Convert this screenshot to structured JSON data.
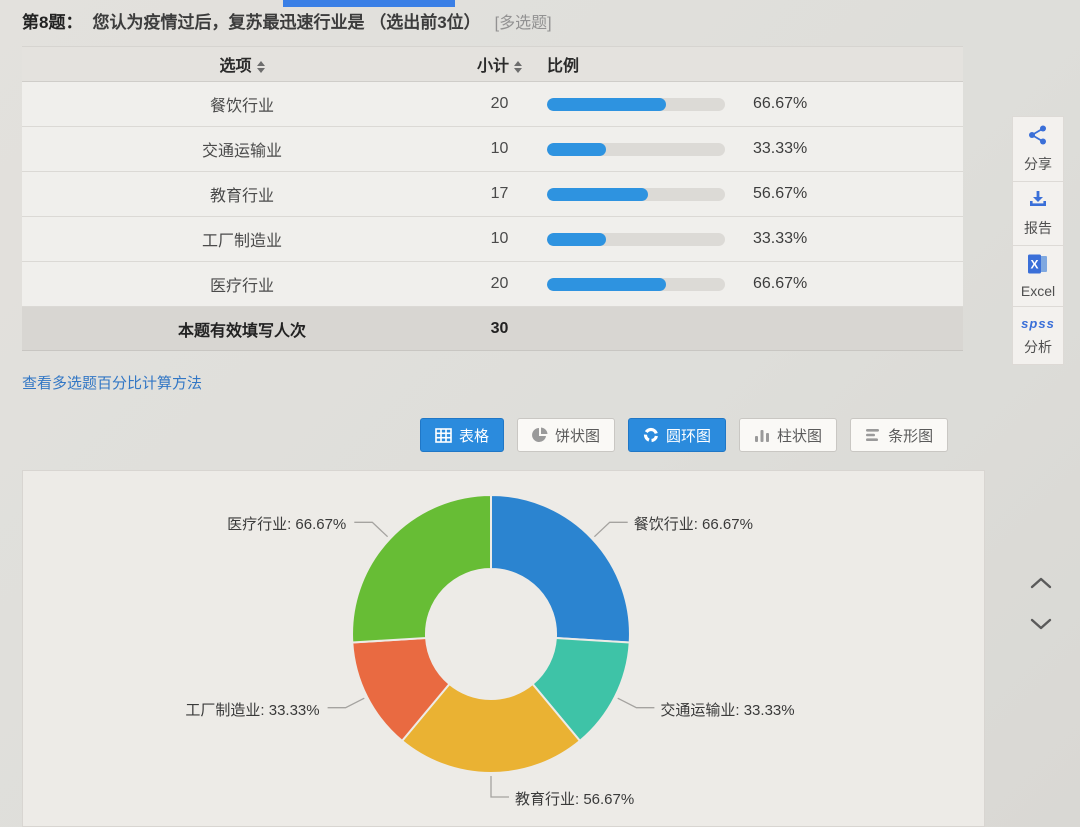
{
  "question": {
    "number_label": "第8题：",
    "text": "您认为疫情过后，复苏最迅速行业是 （选出前3位）",
    "type_tag": "[多选题]"
  },
  "table": {
    "headers": {
      "option": "选项",
      "subtotal": "小计",
      "ratio": "比例"
    },
    "rows": [
      {
        "option": "餐饮行业",
        "subtotal": "20",
        "percent": "66.67%"
      },
      {
        "option": "交通运输业",
        "subtotal": "10",
        "percent": "33.33%"
      },
      {
        "option": "教育行业",
        "subtotal": "17",
        "percent": "56.67%"
      },
      {
        "option": "工厂制造业",
        "subtotal": "10",
        "percent": "33.33%"
      },
      {
        "option": "医疗行业",
        "subtotal": "20",
        "percent": "66.67%"
      }
    ],
    "total": {
      "label": "本题有效填写人次",
      "subtotal": "30"
    }
  },
  "link": {
    "label": "查看多选题百分比计算方法"
  },
  "chart_tabs": [
    {
      "label": "表格",
      "icon": "table-icon",
      "active": true
    },
    {
      "label": "饼状图",
      "icon": "pie-icon",
      "active": false
    },
    {
      "label": "圆环图",
      "icon": "donut-icon",
      "active": true
    },
    {
      "label": "柱状图",
      "icon": "column-icon",
      "active": false
    },
    {
      "label": "条形图",
      "icon": "hbar-icon",
      "active": false
    }
  ],
  "sidebar": [
    {
      "label": "分享",
      "icon": "share-icon"
    },
    {
      "label": "报告",
      "icon": "download-icon"
    },
    {
      "label": "Excel",
      "icon": "excel-icon"
    },
    {
      "label": "分析",
      "icon": "spss-icon",
      "icon_text": "spss"
    }
  ],
  "colors": {
    "accent_blue": "#2b8bdd",
    "table_bar_blue": "#2e93e0",
    "link_blue": "#3277c5"
  },
  "chart_data": {
    "type": "pie",
    "subtype": "donut",
    "title": "",
    "categories": [
      "餐饮行业",
      "交通运输业",
      "教育行业",
      "工厂制造业",
      "医疗行业"
    ],
    "values": [
      20,
      10,
      17,
      10,
      20
    ],
    "percent_labels": [
      "66.67%",
      "33.33%",
      "56.67%",
      "33.33%",
      "66.67%"
    ],
    "colors": [
      "#2b84d0",
      "#3ec3a7",
      "#eab233",
      "#e96a41",
      "#67bd35"
    ],
    "label_format": "{name}: {percent}",
    "start_angle_deg": 0,
    "clockwise": true,
    "inner_radius_ratio": 0.47,
    "legend": "none"
  }
}
